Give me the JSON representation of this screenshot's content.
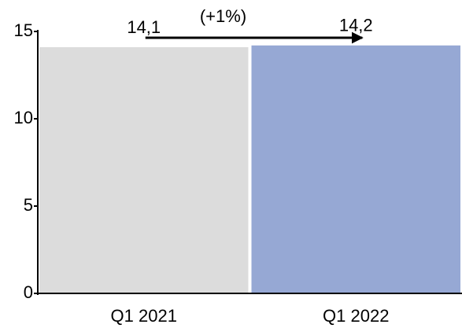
{
  "chart_data": {
    "type": "bar",
    "categories": [
      "Q1 2021",
      "Q1 2022"
    ],
    "values": [
      14.1,
      14.2
    ],
    "value_labels": [
      "14,1",
      "14,2"
    ],
    "colors": [
      "#dcdcdc",
      "#96a8d4"
    ],
    "ylim": [
      0,
      15
    ],
    "yticks": [
      0,
      5,
      10,
      15
    ],
    "annotation": "(+1%)"
  }
}
